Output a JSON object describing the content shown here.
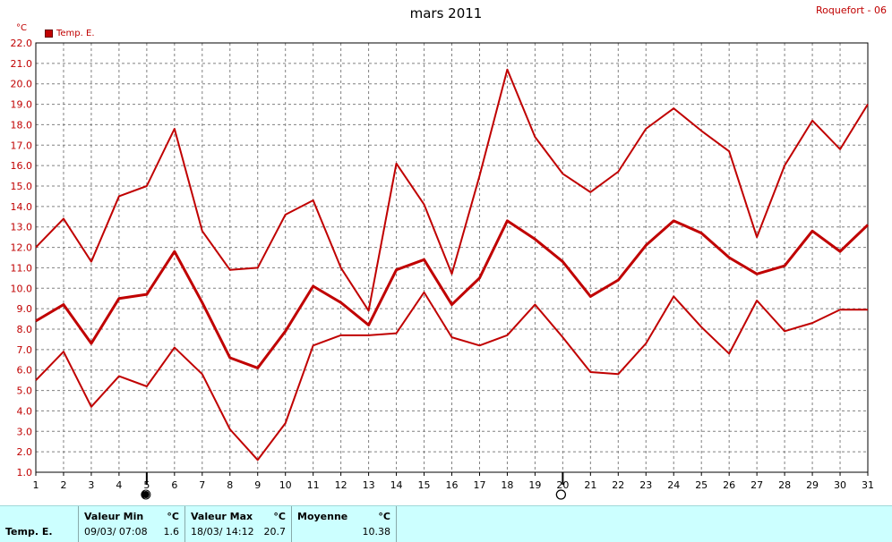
{
  "header": {
    "title": "mars 2011",
    "station": "Roquefort - 06",
    "unit": "°C",
    "legend_label": "Temp. E."
  },
  "chart_data": {
    "type": "line",
    "title": "mars 2011",
    "xlabel": "",
    "ylabel": "°C",
    "x": [
      1,
      2,
      3,
      4,
      5,
      6,
      7,
      8,
      9,
      10,
      11,
      12,
      13,
      14,
      15,
      16,
      17,
      18,
      19,
      20,
      21,
      22,
      23,
      24,
      25,
      26,
      27,
      28,
      29,
      30,
      31
    ],
    "xlim": [
      1,
      31
    ],
    "ylim": [
      1.0,
      22.0
    ],
    "y_ticks": [
      "1.0",
      "2.0",
      "3.0",
      "4.0",
      "5.0",
      "6.0",
      "7.0",
      "8.0",
      "9.0",
      "10.0",
      "11.0",
      "12.0",
      "13.0",
      "14.0",
      "15.0",
      "16.0",
      "17.0",
      "18.0",
      "19.0",
      "20.0",
      "21.0",
      "22.0"
    ],
    "x_ticks": [
      "1",
      "2",
      "3",
      "4",
      "5",
      "6",
      "7",
      "8",
      "9",
      "10",
      "11",
      "12",
      "13",
      "14",
      "15",
      "16",
      "17",
      "18",
      "19",
      "20",
      "21",
      "22",
      "23",
      "24",
      "25",
      "26",
      "27",
      "28",
      "29",
      "30",
      "31"
    ],
    "grid": true,
    "legend_position": "top-left",
    "color": "#c00000",
    "series": [
      {
        "name": "Temp. E.",
        "values": [
          12.0,
          13.4,
          11.3,
          14.5,
          15.0,
          17.8,
          12.8,
          10.9,
          11.0,
          13.6,
          14.3,
          11.0,
          8.9,
          16.1,
          14.1,
          10.7,
          15.5,
          20.7,
          17.4,
          15.6,
          14.7,
          15.7,
          17.8,
          18.8,
          17.7,
          16.7,
          12.5,
          16.0,
          18.2,
          16.8,
          19.0
        ]
      },
      {
        "values": [
          8.4,
          9.2,
          7.3,
          9.5,
          9.7,
          11.8,
          9.3,
          6.6,
          6.1,
          7.9,
          10.1,
          9.3,
          8.2,
          10.9,
          11.4,
          9.2,
          10.5,
          13.3,
          12.4,
          11.3,
          9.6,
          10.4,
          12.1,
          13.3,
          12.7,
          11.5,
          10.7,
          11.1,
          12.8,
          11.8,
          13.1
        ]
      },
      {
        "values": [
          5.5,
          6.9,
          4.2,
          5.7,
          5.2,
          7.1,
          5.8,
          3.1,
          1.6,
          3.4,
          7.2,
          7.7,
          7.7,
          7.8,
          9.8,
          7.6,
          7.2,
          7.7,
          9.2,
          7.6,
          5.9,
          5.8,
          7.3,
          9.6,
          8.1,
          6.8,
          9.4,
          7.9,
          8.3,
          8.95,
          8.95
        ]
      }
    ],
    "moon_phases": [
      {
        "day": 5,
        "phase": "new-moon"
      },
      {
        "day": 20,
        "phase": "full-moon"
      }
    ]
  },
  "stats": {
    "series_name": "Temp. E.",
    "min": {
      "label": "Valeur Min",
      "unit": "°C",
      "date": "09/03/  07:08",
      "value": "1.6"
    },
    "max": {
      "label": "Valeur Max",
      "unit": "°C",
      "date": "18/03/  14:12",
      "value": "20.7"
    },
    "mean": {
      "label": "Moyenne",
      "unit": "°C",
      "value": "10.38"
    }
  }
}
